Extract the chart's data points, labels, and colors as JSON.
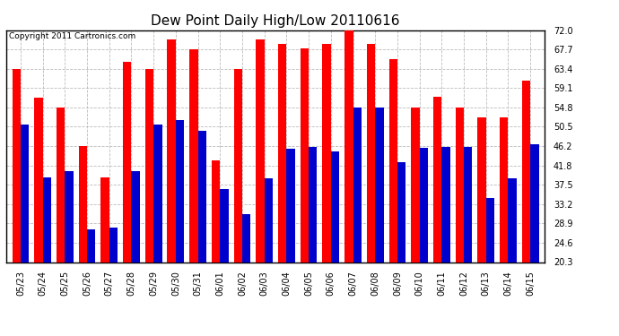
{
  "title": "Dew Point Daily High/Low 20110616",
  "copyright": "Copyright 2011 Cartronics.com",
  "dates": [
    "05/23",
    "05/24",
    "05/25",
    "05/26",
    "05/27",
    "05/28",
    "05/29",
    "05/30",
    "05/31",
    "06/01",
    "06/02",
    "06/03",
    "06/04",
    "06/05",
    "06/06",
    "06/07",
    "06/08",
    "06/09",
    "06/10",
    "06/11",
    "06/12",
    "06/13",
    "06/14",
    "06/15"
  ],
  "highs": [
    63.4,
    57.0,
    54.8,
    46.2,
    39.2,
    65.0,
    63.4,
    70.0,
    67.7,
    43.0,
    63.4,
    70.0,
    69.0,
    68.0,
    69.0,
    72.0,
    69.0,
    65.5,
    54.8,
    57.2,
    54.8,
    52.5,
    52.5,
    60.8
  ],
  "lows": [
    51.0,
    39.2,
    40.5,
    27.5,
    28.0,
    40.5,
    51.0,
    52.0,
    49.5,
    36.5,
    31.0,
    39.0,
    45.5,
    46.0,
    45.0,
    54.8,
    54.8,
    42.5,
    45.8,
    46.0,
    46.0,
    34.5,
    39.0,
    46.5
  ],
  "high_color": "#ff0000",
  "low_color": "#0000cc",
  "background_color": "#ffffff",
  "grid_color": "#bbbbbb",
  "yticks": [
    20.3,
    24.6,
    28.9,
    33.2,
    37.5,
    41.8,
    46.2,
    50.5,
    54.8,
    59.1,
    63.4,
    67.7,
    72.0
  ],
  "ymin": 20.3,
  "ymax": 72.0,
  "bar_width": 0.38,
  "title_fontsize": 11,
  "tick_fontsize": 7,
  "copyright_fontsize": 6.5
}
